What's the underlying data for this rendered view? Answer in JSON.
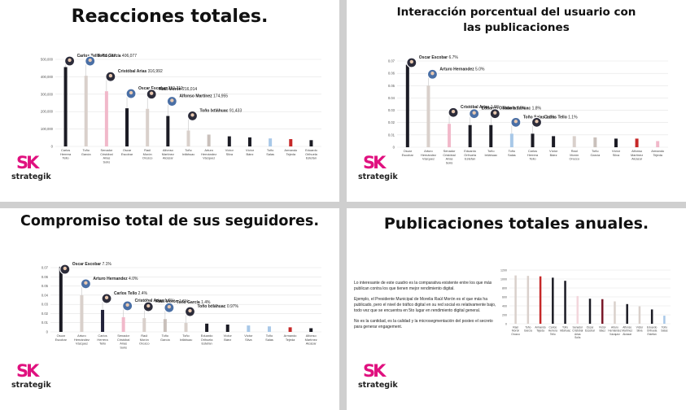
{
  "brand": {
    "name": "strategik"
  },
  "colors": {
    "pink": "#e0117f",
    "black": "#1b1b24",
    "dark": "#2b2b36",
    "navy": "#22223a",
    "pale_pink": "#f1b9ca",
    "light_pink": "#f3d6dc",
    "light_gray": "#d9d0cb",
    "gray": "#8a8a8a",
    "red": "#c62828",
    "teal": "#6b8fa0",
    "light_blue": "#a8c8e8",
    "burgundy": "#7b1a2a"
  },
  "slides": [
    {
      "title": "Reacciones totales.",
      "chart_data": {
        "type": "bar",
        "ylim": [
          0,
          500000
        ],
        "yticks": [
          "0",
          "100,000",
          "200,000",
          "300,000",
          "400,000",
          "500,000"
        ],
        "categories": [
          "Carlos Herrera Tello",
          "Toño García",
          "Senador Cristóbal Arias Solís",
          "Oscar Escobar",
          "Raúl Morón Orozco",
          "Alfonso Martínez Alcázar",
          "Toño Ixtláhuac",
          "Arturo Hernández Vázquez",
          "Víctor Silva",
          "Víctor Báez",
          "Toño Salas",
          "Armando Tejeda",
          "Eduardo Orihuela Estefan"
        ],
        "values": [
          455787,
          406077,
          316992,
          219219,
          216014,
          174955,
          91433,
          68000,
          58000,
          52000,
          46000,
          42000,
          36000
        ],
        "colors": [
          "#1b1b24",
          "#d9d0cb",
          "#f1b9ca",
          "#1b1b24",
          "#d9d0cb",
          "#1b1b24",
          "#d9d0cb",
          "#c9c0bb",
          "#1b1b24",
          "#1b1b24",
          "#a8c8e8",
          "#c62828",
          "#1b1b24"
        ],
        "annotations": [
          {
            "name": "Carlos Tello",
            "value": "455,787"
          },
          {
            "name": "Toño García",
            "value": "406,077"
          },
          {
            "name": "Cristóbal Arias",
            "value": "316,992"
          },
          {
            "name": "Oscar Escobar",
            "value": "219,219"
          },
          {
            "name": "Raúl Morón",
            "value": "216,014"
          },
          {
            "name": "Alfonso Martínez",
            "value": "174,955"
          },
          {
            "name": "Toño Ixtláhuac",
            "value": "91,433"
          }
        ]
      }
    },
    {
      "title": "Interacción porcentual del usuario con las publicaciones",
      "chart_data": {
        "type": "bar",
        "ylim": [
          0,
          0.07
        ],
        "yticks": [
          "0",
          "0.01",
          "0.02",
          "0.03",
          "0.04",
          "0.05",
          "0.06",
          "0.07"
        ],
        "categories": [
          "Oscar Escobar",
          "Arturo Hernández Vázquez",
          "Senador Cristóbal Arias Solís",
          "Eduardo Orihuela Estefan",
          "Toño Ixtláhuac",
          "Toño Salas",
          "Carlos Herrera Tello",
          "Víctor Báez",
          "Raúl Morón Orozco",
          "Toño García",
          "Víctor Silva",
          "Alfonso Martínez Alcázar",
          "Armando Tejeda"
        ],
        "values": [
          0.067,
          0.05,
          0.019,
          0.018,
          0.018,
          0.011,
          0.011,
          0.009,
          0.009,
          0.008,
          0.007,
          0.007,
          0.005
        ],
        "colors": [
          "#1b1b24",
          "#d9d0cb",
          "#f1b9ca",
          "#1b1b24",
          "#1b1b24",
          "#a8c8e8",
          "#1b1b24",
          "#1b1b24",
          "#d9d0cb",
          "#c9c0bb",
          "#1b1b24",
          "#c62828",
          "#f1b9ca"
        ],
        "annotations": [
          {
            "name": "Oscar Escobar",
            "value": "6.7%"
          },
          {
            "name": "Arturo Hernandez",
            "value": "5.0%"
          },
          {
            "name": "Cristóbal Arias",
            "value": "1.9%"
          },
          {
            "name": "Eduardo Orihuela",
            "value": "1.8%"
          },
          {
            "name": "Toño Ixtláhuac",
            "value": "1.8%"
          },
          {
            "name": "Toño Salas",
            "value": "1.1%"
          },
          {
            "name": "Carlos Tello",
            "value": "1.1%"
          }
        ]
      }
    },
    {
      "title": "Compromiso total de sus seguidores.",
      "chart_data": {
        "type": "bar",
        "ylim": [
          0,
          0.07
        ],
        "yticks": [
          "0",
          "0.01",
          "0.02",
          "0.03",
          "0.04",
          "0.05",
          "0.06",
          "0.07"
        ],
        "categories": [
          "Oscar Escobar",
          "Arturo Hernández Vázquez",
          "Carlos Herrera Tello",
          "Senador Cristóbal Arias Solís",
          "Raúl Morón Orozco",
          "Toño García",
          "Toño Ixtláhuac",
          "Eduardo Orihuela Estefan",
          "Víctor Báez",
          "Víctor Silva",
          "Toño Salas",
          "Armando Tejeda",
          "Alfonso Martínez Alcázar"
        ],
        "values": [
          0.071,
          0.04,
          0.024,
          0.016,
          0.015,
          0.014,
          0.0097,
          0.009,
          0.008,
          0.007,
          0.006,
          0.005,
          0.004
        ],
        "colors": [
          "#1b1b24",
          "#d9d0cb",
          "#22223a",
          "#f1b9ca",
          "#d9d0cb",
          "#c9c0bb",
          "#d9d0cb",
          "#1b1b24",
          "#1b1b24",
          "#a8c8e8",
          "#a8c8e8",
          "#c62828",
          "#1b1b24"
        ],
        "annotations": [
          {
            "name": "Oscar Escobar",
            "value": "7.1%"
          },
          {
            "name": "Arturo Hernandez",
            "value": "4.0%"
          },
          {
            "name": "Carlos Tello",
            "value": "2.4%"
          },
          {
            "name": "Cristóbal Arias",
            "value": "1.6%"
          },
          {
            "name": "Raúl Morón",
            "value": "1.5%"
          },
          {
            "name": "Toño García",
            "value": "1.4%"
          },
          {
            "name": "Toño Ixtláhuac",
            "value": "0.97%"
          }
        ]
      }
    },
    {
      "title": "Publicaciones totales anuales.",
      "text": [
        "Lo interesante de este cuadro es la comparativa existente entre los que más publican contra los que tienen mejor rendimiento digital.",
        "Ejemplo, el Presidente Municipal de Morelia Raúl Morón es el que más ha publicado, pero el nivel de tráfico digital en su red social es relativamente bajo, todo vez que se encuentra en 5to lugar en rendimiento digital general.",
        "No es la cantidad, es la calidad y la microsegmentación del posteo el secreto para generar engagement."
      ],
      "chart_data": {
        "type": "bar",
        "ylim": [
          0,
          1200
        ],
        "yticks": [
          "0",
          "200",
          "400",
          "600",
          "800",
          "1000",
          "1200"
        ],
        "categories": [
          "Raúl Morón Orozco",
          "Toño García",
          "Armando Tejeda",
          "Carlos Herrera Tello",
          "Toño Ixtláhuac",
          "Senador Cristóbal Arias Solís",
          "Oscar Escobar",
          "Víctor Báez",
          "Arturo Hernández Vázquez",
          "Alfonso Martínez Alcázar",
          "Víctor Silva",
          "Eduardo Orihuela Estefan",
          "Toño Salas"
        ],
        "values": [
          1080,
          1070,
          1060,
          1030,
          960,
          620,
          560,
          550,
          500,
          440,
          390,
          320,
          180
        ],
        "colors": [
          "#d9d0cb",
          "#d9d0cb",
          "#c62828",
          "#1b1b24",
          "#1b1b24",
          "#f3d6dc",
          "#1b1b24",
          "#7b1a2a",
          "#d9d0cb",
          "#1b1b24",
          "#d9d0cb",
          "#1b1b24",
          "#a8c8e8"
        ]
      }
    }
  ]
}
